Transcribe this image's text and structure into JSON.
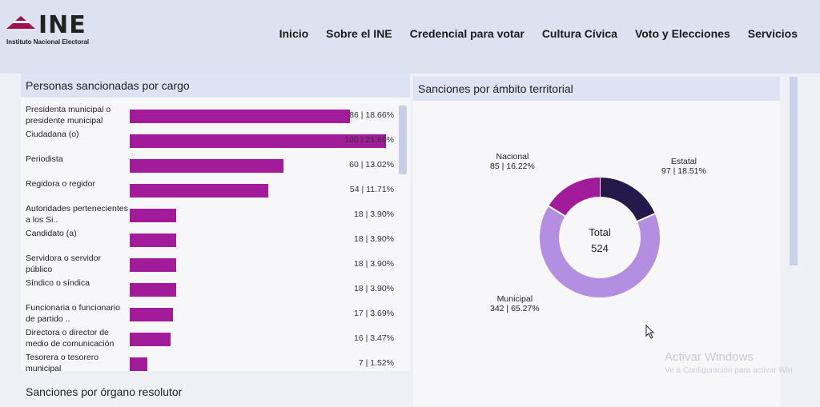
{
  "header": {
    "logo_text": "INE",
    "logo_sub": "Instituto Nacional Electoral",
    "nav": [
      "Inicio",
      "Sobre el INE",
      "Credencial para votar",
      "Cultura Cívica",
      "Voto y Elecciones",
      "Servicios"
    ]
  },
  "left_panel": {
    "title": "Personas sancionadas por cargo",
    "rows": [
      {
        "label": "Presidenta municipal o presidente municipal",
        "value": 86,
        "text": "86 | 18.66%"
      },
      {
        "label": "Ciudadana (o)",
        "value": 100,
        "text": "100 | 21.69%"
      },
      {
        "label": "Periodista",
        "value": 60,
        "text": "60 | 13.02%"
      },
      {
        "label": "Regidora o regidor",
        "value": 54,
        "text": "54 | 11.71%"
      },
      {
        "label": "Autoridades pertenecientes a los Si..",
        "value": 18,
        "text": "18 | 3.90%"
      },
      {
        "label": "Candidato (a)",
        "value": 18,
        "text": "18 | 3.90%"
      },
      {
        "label": "Servidora o servidor público",
        "value": 18,
        "text": "18 | 3.90%"
      },
      {
        "label": "Síndico o síndica",
        "value": 18,
        "text": "18 | 3.90%"
      },
      {
        "label": "Funcionaria o funcionario de partido ..",
        "value": 17,
        "text": "17 | 3.69%"
      },
      {
        "label": "Directora o director de medio de comunicación",
        "value": 16,
        "text": "16 | 3.47%"
      },
      {
        "label": "Tesorera o tesorero municipal",
        "value": 7,
        "text": "7 | 1.52%"
      }
    ],
    "bar_color": "#a21c9a"
  },
  "right_panel": {
    "title": "Sanciones por ámbito territorial",
    "total_label": "Total",
    "total_value": "524",
    "slices": [
      {
        "name": "Estatal",
        "value": 97,
        "text": "97 | 18.51%",
        "color": "#241a4a"
      },
      {
        "name": "Municipal",
        "value": 342,
        "text": "342 | 65.27%",
        "color": "#b48ee0"
      },
      {
        "name": "Nacional",
        "value": 85,
        "text": "85 | 16.22%",
        "color": "#a21c9a"
      }
    ]
  },
  "bottom_title": "Sanciones por órgano resolutor",
  "watermark": {
    "line1": "Activar Windows",
    "line2": "Ve a Configuración para activar Win"
  },
  "chart_data": [
    {
      "type": "bar",
      "title": "Personas sancionadas por cargo",
      "categories": [
        "Presidenta municipal o presidente municipal",
        "Ciudadana (o)",
        "Periodista",
        "Regidora o regidor",
        "Autoridades pertenecientes a los Si..",
        "Candidato (a)",
        "Servidora o servidor público",
        "Síndico o síndica",
        "Funcionaria o funcionario de partido ..",
        "Directora o director de medio de comunicación",
        "Tesorera o tesorero municipal"
      ],
      "values": [
        86,
        100,
        60,
        54,
        18,
        18,
        18,
        18,
        17,
        16,
        7
      ]
    },
    {
      "type": "pie",
      "title": "Sanciones por ámbito territorial",
      "categories": [
        "Estatal",
        "Municipal",
        "Nacional"
      ],
      "values": [
        97,
        342,
        85
      ]
    }
  ]
}
